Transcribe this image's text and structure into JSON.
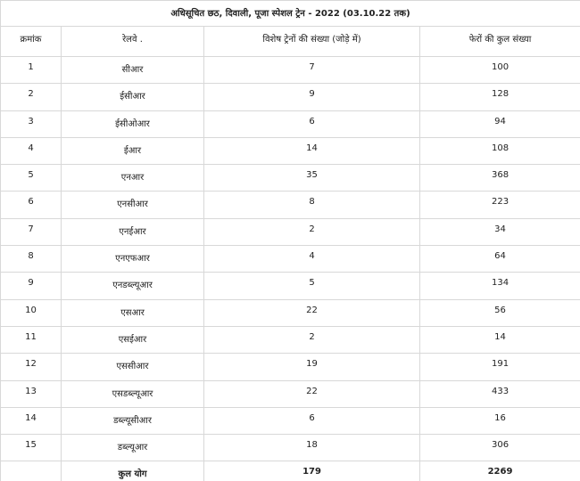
{
  "title": "अधिसूचित छठ, दिवाली, पूजा स्पेशल ट्रेन - 2022    (03.10.22 तक)",
  "headers": [
    "क्रमांक",
    "रेलवे .",
    "विशेष ट्रेनों की संख्या (जोड़े में)",
    "फेरों की कुल संख्या"
  ],
  "rows": [
    [
      "1",
      "सीआर",
      "7",
      "100"
    ],
    [
      "2",
      "ईसीआर",
      "9",
      "128"
    ],
    [
      "3",
      "ईसीओआर",
      "6",
      "94"
    ],
    [
      "4",
      "ईआर",
      "14",
      "108"
    ],
    [
      "5",
      "एनआर",
      "35",
      "368"
    ],
    [
      "6",
      "एनसीआर",
      "8",
      "223"
    ],
    [
      "7",
      "एनईआर",
      "2",
      "34"
    ],
    [
      "8",
      "एनएफआर",
      "4",
      "64"
    ],
    [
      "9",
      "एनडब्ल्यूआर",
      "5",
      "134"
    ],
    [
      "10",
      "एसआर",
      "22",
      "56"
    ],
    [
      "11",
      "एसईआर",
      "2",
      "14"
    ],
    [
      "12",
      "एससीआर",
      "19",
      "191"
    ],
    [
      "13",
      "एसडब्ल्यूआर",
      "22",
      "433"
    ],
    [
      "14",
      "डब्ल्यूसीआर",
      "6",
      "16"
    ],
    [
      "15",
      "डब्ल्यूआर",
      "18",
      "306"
    ]
  ],
  "total": {
    "label": "कुल योग",
    "trains": "179",
    "trips": "2269"
  }
}
